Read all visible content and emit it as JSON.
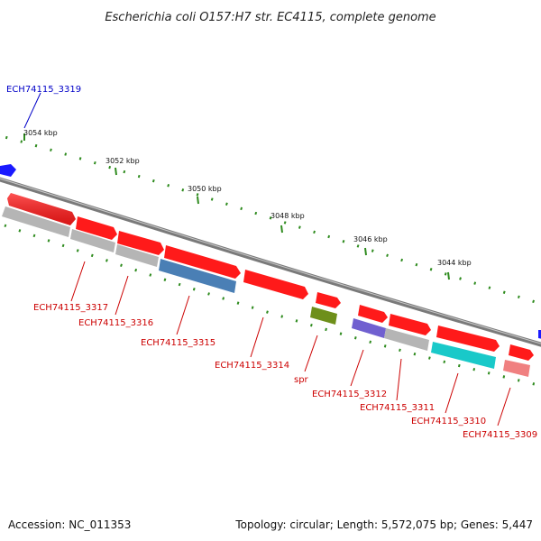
{
  "title": "Escherichia coli O157:H7 str. EC4115, complete genome",
  "footer": {
    "accession": "Accession: NC_011353",
    "summary": "Topology: circular; Length: 5,572,075 bp; Genes: 5,447"
  },
  "colors": {
    "backbone": "#7a7a7a",
    "tick": "#2e8b1e",
    "forward_gene": "#ff1a1a",
    "reverse_gene": "#b5b5b5",
    "label_forward_top": "#0000c8",
    "label": "#cc0000"
  },
  "scale_labels": [
    "3054 kbp",
    "3052 kbp",
    "3050 kbp",
    "3048 kbp",
    "3046 kbp",
    "3044 kbp"
  ],
  "genes": [
    {
      "name": "ECH74115_3319",
      "color": "#1a1aff",
      "label_color": "#0000c8"
    },
    {
      "name": "ECH74115_3317",
      "color": "#ff1a1a",
      "label_color": "#cc0000"
    },
    {
      "name": "ECH74115_3316",
      "color": "#ff1a1a",
      "label_color": "#cc0000"
    },
    {
      "name": "ECH74115_3315",
      "color": "#4a7fb5",
      "label_color": "#cc0000"
    },
    {
      "name": "ECH74115_3314",
      "color": "#ff1a1a",
      "label_color": "#cc0000"
    },
    {
      "name": "spr",
      "color": "#6e8f1a",
      "label_color": "#cc0000"
    },
    {
      "name": "ECH74115_3312",
      "color": "#7060d0",
      "label_color": "#cc0000"
    },
    {
      "name": "ECH74115_3311",
      "color": "#b5b5b5",
      "label_color": "#cc0000"
    },
    {
      "name": "ECH74115_3310",
      "color": "#19c9c9",
      "label_color": "#cc0000"
    },
    {
      "name": "ECH74115_3309",
      "color": "#f08080",
      "label_color": "#cc0000"
    }
  ]
}
